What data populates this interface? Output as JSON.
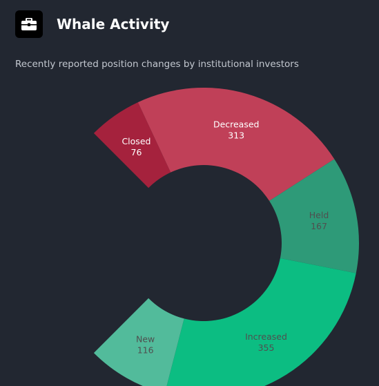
{
  "header": {
    "title": "Whale Activity",
    "icon": "briefcase-icon"
  },
  "subtitle": "Recently reported position changes by institutional investors",
  "chart_data": {
    "type": "pie",
    "style": "semi-donut",
    "categories": [
      "Closed",
      "Decreased",
      "Held",
      "Increased",
      "New"
    ],
    "values": [
      76,
      313,
      167,
      355,
      116
    ],
    "colors": [
      "#a5223d",
      "#c04058",
      "#2e9a78",
      "#0cbd82",
      "#52bb9b"
    ],
    "label_colors": [
      "#ffffff",
      "#ffffff",
      "#4f4f4f",
      "#4f4f4f",
      "#4f4f4f"
    ],
    "legend": "none",
    "data_labels": "inside"
  }
}
